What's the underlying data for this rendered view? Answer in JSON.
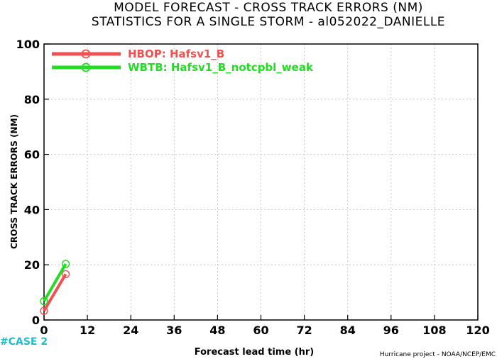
{
  "chart_data": {
    "type": "line",
    "title": "MODEL FORECAST - CROSS TRACK ERRORS (NM)",
    "subtitle": "STATISTICS FOR A SINGLE STORM - al052022_DANIELLE",
    "xlabel": "Forecast lead time (hr)",
    "ylabel": "CROSS TRACK ERRORS (NM)",
    "xlim": [
      0,
      120
    ],
    "ylim": [
      0,
      100
    ],
    "xticks": [
      0,
      12,
      24,
      36,
      48,
      60,
      72,
      84,
      96,
      108,
      120
    ],
    "yticks": [
      0,
      20,
      40,
      60,
      80,
      100
    ],
    "grid": true,
    "legend_position": "top-left",
    "series": [
      {
        "name": "HBOP: Hafsv1_B",
        "color": "#f05050",
        "x": [
          0,
          6
        ],
        "y": [
          3.3,
          16.6
        ]
      },
      {
        "name": "WBTB: Hafsv1_B_notcpbl_weak",
        "color": "#22dd22",
        "x": [
          0,
          6
        ],
        "y": [
          6.8,
          20.3
        ]
      }
    ]
  },
  "footer": {
    "case_label": "#CASE  2",
    "case_color": "#22bbcc",
    "credit": "Hurricane project - NOAA/NCEP/EMC"
  }
}
